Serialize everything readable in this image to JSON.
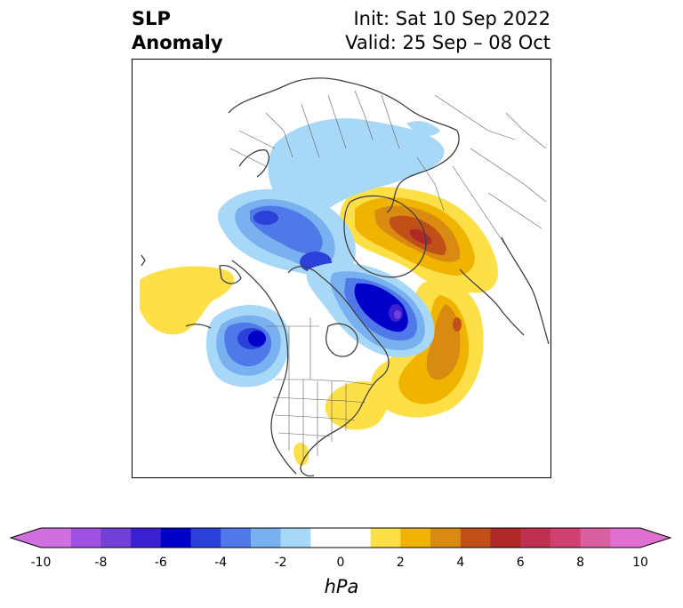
{
  "title": {
    "left_line1": "SLP",
    "left_line2": "Anomaly",
    "right_line1": "Init: Sat 10 Sep 2022",
    "right_line2": "Valid: 25 Sep – 08 Oct"
  },
  "colorbar": {
    "unit": "hPa",
    "ticks": [
      "-10",
      "-8",
      "-6",
      "-4",
      "-2",
      "0",
      "2",
      "4",
      "6",
      "8",
      "10"
    ],
    "min": -10,
    "max": 10,
    "interval": 1,
    "extend": "both",
    "colors": [
      "#d070e0",
      "#a050e0",
      "#7040d8",
      "#3a20d0",
      "#0000c8",
      "#2a40d8",
      "#4f78e8",
      "#78b0f0",
      "#a8d8f8",
      "#ffffff",
      "#ffffff",
      "#fde047",
      "#f0b400",
      "#d98a10",
      "#c05018",
      "#b02828",
      "#c03050",
      "#d04070",
      "#d860a0",
      "#e070d0"
    ],
    "under_color": "#d070e0",
    "over_color": "#e070d0"
  },
  "map": {
    "projection": "north-polar-stereographic",
    "anomaly_features": [
      {
        "name": "negative-anomaly-north-pacific",
        "level_hpa": -6
      },
      {
        "name": "negative-anomaly-western-arctic",
        "level_hpa": -5
      },
      {
        "name": "negative-anomaly-greenland-baffin",
        "level_hpa": -7
      },
      {
        "name": "negative-anomaly-central-arctic",
        "level_hpa": -2
      },
      {
        "name": "positive-anomaly-scandinavia-arctic-russia",
        "level_hpa": 6
      },
      {
        "name": "positive-anomaly-north-atlantic",
        "level_hpa": 5
      },
      {
        "name": "positive-anomaly-eastern-us",
        "level_hpa": 2
      },
      {
        "name": "positive-anomaly-central-pacific",
        "level_hpa": 1
      },
      {
        "name": "positive-anomaly-central-america",
        "level_hpa": 1
      }
    ]
  }
}
